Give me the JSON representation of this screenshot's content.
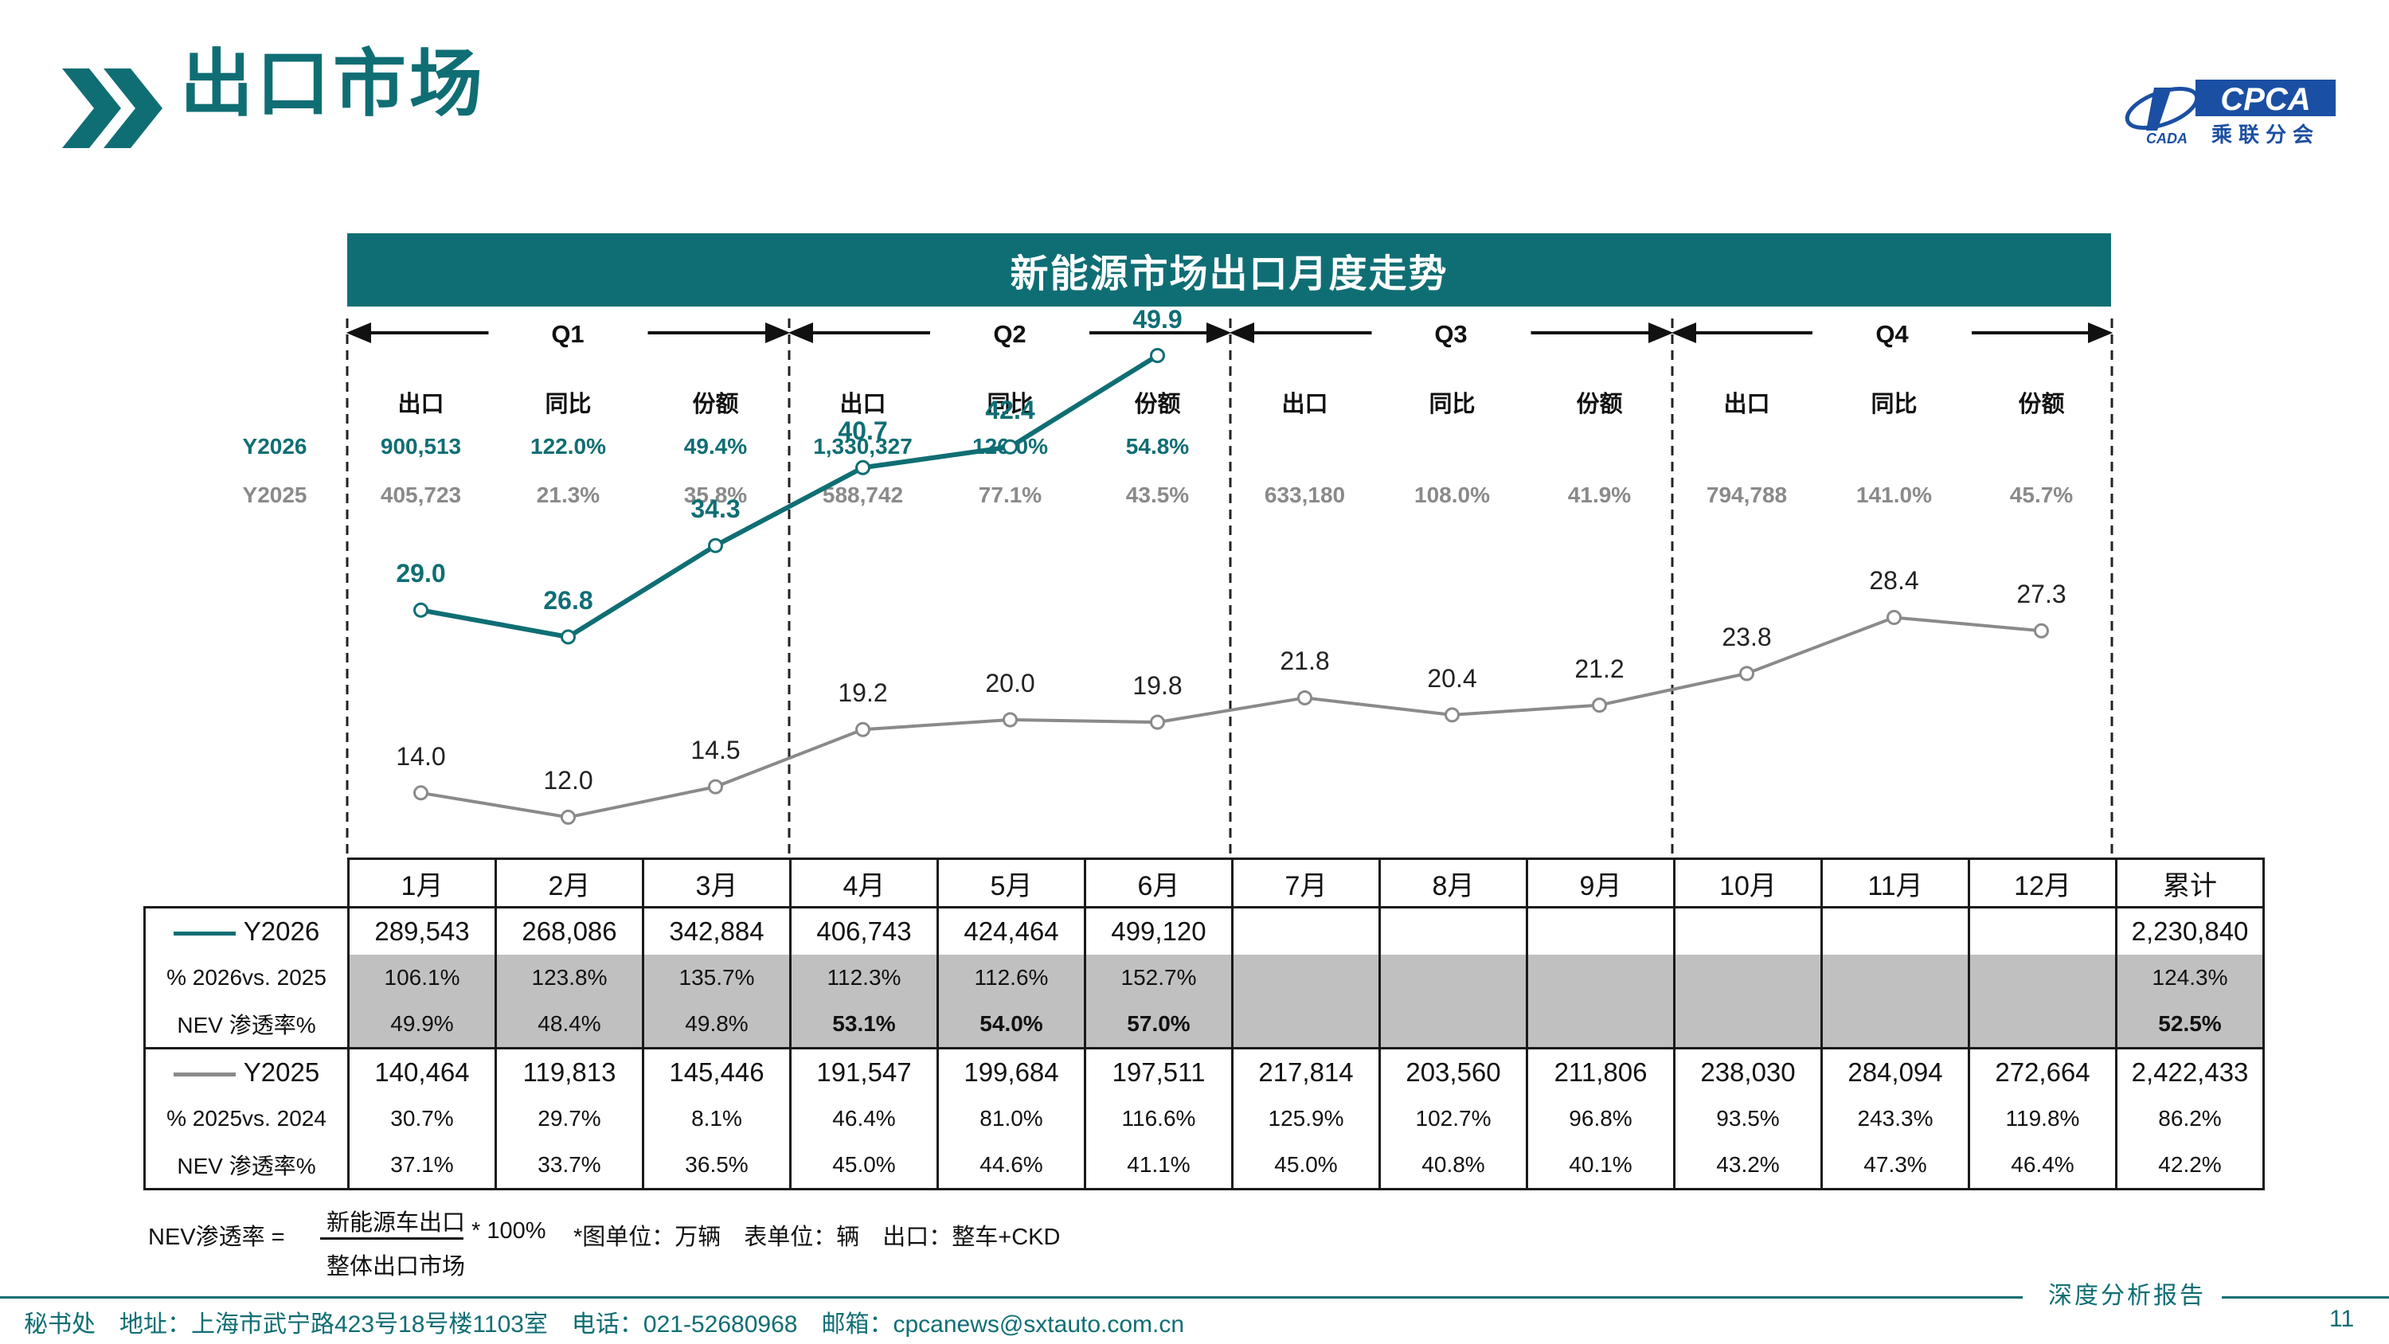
{
  "header": {
    "title": "出口市场"
  },
  "logo": {
    "name": "CPCA",
    "sub": "乘联分会",
    "mark": "CADA"
  },
  "banner": {
    "title": "新能源市场出口月度走势"
  },
  "quarters": [
    "Q1",
    "Q2",
    "Q3",
    "Q4"
  ],
  "quarter_summary": {
    "col_headers": [
      "出口",
      "同比",
      "份额"
    ],
    "row_labels": [
      "Y2026",
      "Y2025"
    ],
    "Y2026": [
      [
        "900,513",
        "122.0%",
        "49.4%"
      ],
      [
        "1,330,327",
        "126.0%",
        "54.8%"
      ],
      [
        "",
        "",
        ""
      ],
      [
        "",
        "",
        ""
      ]
    ],
    "Y2025": [
      [
        "405,723",
        "21.3%",
        "35.8%"
      ],
      [
        "588,742",
        "77.1%",
        "43.5%"
      ],
      [
        "633,180",
        "108.0%",
        "41.9%"
      ],
      [
        "794,788",
        "141.0%",
        "45.7%"
      ]
    ]
  },
  "chart_data": {
    "type": "line",
    "x": [
      "1月",
      "2月",
      "3月",
      "4月",
      "5月",
      "6月",
      "7月",
      "8月",
      "9月",
      "10月",
      "11月",
      "12月"
    ],
    "series": [
      {
        "name": "Y2026",
        "values": [
          29.0,
          26.8,
          34.3,
          40.7,
          42.4,
          49.9,
          null,
          null,
          null,
          null,
          null,
          null
        ],
        "color": "#0f6e74"
      },
      {
        "name": "Y2025",
        "values": [
          14.0,
          12.0,
          14.5,
          19.2,
          20.0,
          19.8,
          21.8,
          20.4,
          21.2,
          23.8,
          28.4,
          27.3
        ],
        "color": "#8a8a8a"
      }
    ],
    "labels_2026": [
      "29.0",
      "26.8",
      "34.3",
      "40.7",
      "42.4",
      "49.9"
    ],
    "labels_2025": [
      "14.0",
      "12.0",
      "14.5",
      "19.2",
      "20.0",
      "19.8",
      "21.8",
      "20.4",
      "21.2",
      "23.8",
      "28.4",
      "27.3"
    ],
    "grid": false
  },
  "table": {
    "months": [
      "1月",
      "2月",
      "3月",
      "4月",
      "5月",
      "6月",
      "7月",
      "8月",
      "9月",
      "10月",
      "11月",
      "12月"
    ],
    "total_header": "累计",
    "rows": [
      {
        "label": "Y2026",
        "values": [
          "289,543",
          "268,086",
          "342,884",
          "406,743",
          "424,464",
          "499,120",
          "",
          "",
          "",
          "",
          "",
          ""
        ],
        "total": "2,230,840"
      },
      {
        "label": "% 2026vs. 2025",
        "values": [
          "106.1%",
          "123.8%",
          "135.7%",
          "112.3%",
          "112.6%",
          "152.7%",
          "",
          "",
          "",
          "",
          "",
          ""
        ],
        "total": "124.3%"
      },
      {
        "label": "NEV 渗透率%",
        "values": [
          "49.9%",
          "48.4%",
          "49.8%",
          "53.1%",
          "54.0%",
          "57.0%",
          "",
          "",
          "",
          "",
          "",
          ""
        ],
        "total": "52.5%"
      },
      {
        "label": "Y2025",
        "values": [
          "140,464",
          "119,813",
          "145,446",
          "191,547",
          "199,684",
          "197,511",
          "217,814",
          "203,560",
          "211,806",
          "238,030",
          "284,094",
          "272,664"
        ],
        "total": "2,422,433"
      },
      {
        "label": "% 2025vs. 2024",
        "values": [
          "30.7%",
          "29.7%",
          "8.1%",
          "46.4%",
          "81.0%",
          "116.6%",
          "125.9%",
          "102.7%",
          "96.8%",
          "93.5%",
          "243.3%",
          "119.8%"
        ],
        "total": "86.2%"
      },
      {
        "label": "NEV 渗透率%",
        "values": [
          "37.1%",
          "33.7%",
          "36.5%",
          "45.0%",
          "44.6%",
          "41.1%",
          "45.0%",
          "40.8%",
          "40.1%",
          "43.2%",
          "47.3%",
          "46.4%"
        ],
        "total": "42.2%"
      }
    ]
  },
  "footnote": {
    "prefix": "NEV渗透率 =",
    "numerator": "新能源车出口",
    "denominator": "整体出口市场",
    "multiplier": "* 100%",
    "units": "*图单位：万辆　表单位：辆　出口：整车+CKD"
  },
  "footer": {
    "contact": "秘书处　地址：上海市武宁路423号18号楼1103室　电话：021-52680968　邮箱：cpcanews@sxtauto.com.cn",
    "report": "深度分析报告",
    "page": "11"
  }
}
